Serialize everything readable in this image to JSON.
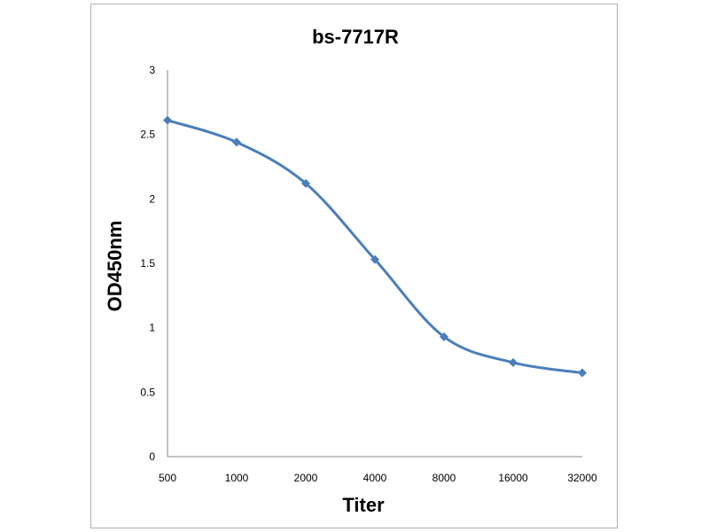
{
  "chart_data": {
    "type": "line",
    "title": "bs-7717R",
    "xlabel": "Titer",
    "ylabel": "OD450nm",
    "categories": [
      "500",
      "1000",
      "2000",
      "4000",
      "8000",
      "16000",
      "32000"
    ],
    "series": [
      {
        "values": [
          2.61,
          2.44,
          2.12,
          1.53,
          0.93,
          0.73,
          0.65
        ]
      }
    ],
    "ylim": [
      0,
      3
    ],
    "yticks": [
      "0",
      "0.5",
      "1",
      "1.5",
      "2",
      "2.5",
      "3"
    ],
    "smooth": true,
    "marker": "diamond",
    "grid": false,
    "legend": "none",
    "line_color": "#4a7ebb"
  }
}
